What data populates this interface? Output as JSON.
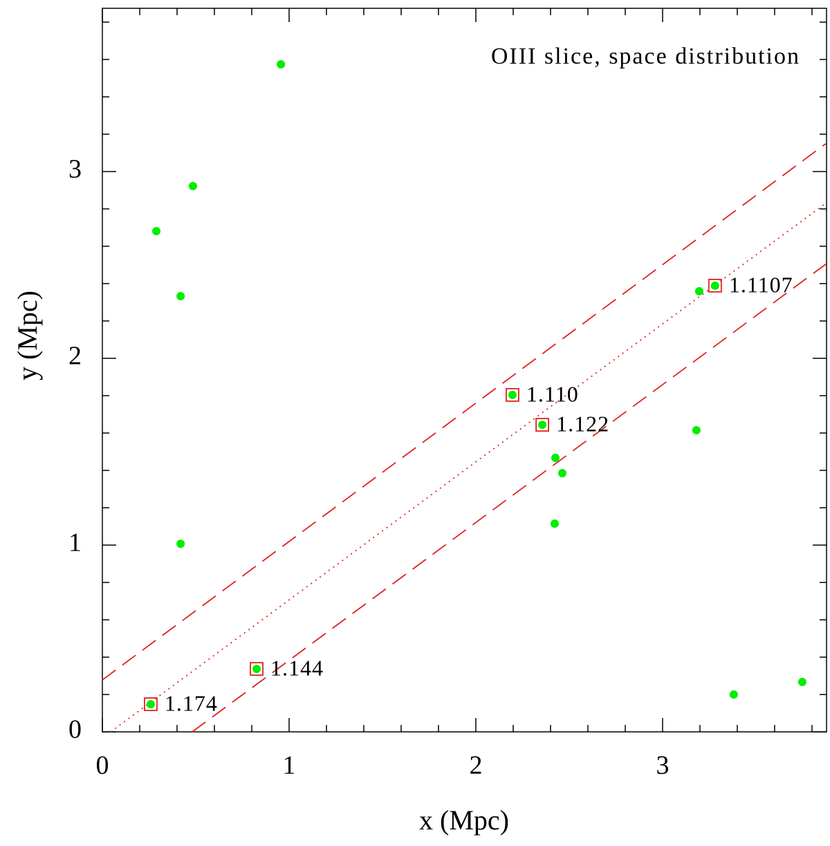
{
  "chart_data": {
    "type": "scatter",
    "title": "OIII slice, space distribution",
    "x_label": "x (Mpc)",
    "y_label": "y (Mpc)",
    "xlim": [
      0,
      3.878
    ],
    "ylim": [
      0,
      3.874
    ],
    "xticks": [
      0,
      1,
      2,
      3
    ],
    "yticks": [
      0,
      1,
      2,
      3
    ],
    "xminor": [
      0.2,
      0.4,
      0.6,
      0.8,
      1.2,
      1.4,
      1.6,
      1.8,
      2.2,
      2.4,
      2.6,
      2.8,
      3.2,
      3.4,
      3.6,
      3.8
    ],
    "yminor": [
      0.2,
      0.4,
      0.6,
      0.8,
      1.2,
      1.4,
      1.6,
      1.8,
      2.2,
      2.4,
      2.6,
      2.8,
      3.2,
      3.4,
      3.6,
      3.8
    ],
    "series": [
      {
        "color": "#00ee00",
        "x": [
          0.956,
          0.485,
          0.289,
          0.419,
          0.419,
          0.259,
          0.826,
          2.196,
          2.356,
          2.426,
          2.463,
          2.422,
          3.181,
          3.196,
          3.281,
          3.381,
          3.748
        ],
        "y": [
          3.574,
          2.922,
          2.681,
          2.333,
          1.007,
          0.148,
          0.337,
          1.804,
          1.644,
          1.467,
          1.385,
          1.115,
          1.615,
          2.359,
          2.389,
          0.2,
          0.267
        ]
      }
    ],
    "lines": [
      {
        "style": "dashed",
        "color": "#e02020",
        "x": [
          0,
          3.878
        ],
        "y": [
          0.278,
          3.152
        ]
      },
      {
        "style": "dotted",
        "color": "#e02020",
        "x": [
          0.044,
          3.878
        ],
        "y": [
          0,
          2.833
        ]
      },
      {
        "style": "dashed",
        "color": "#e02020",
        "x": [
          0.481,
          3.878
        ],
        "y": [
          0,
          2.507
        ]
      }
    ],
    "annotations": [
      {
        "text": "1.174",
        "x": 0.259,
        "y": 0.148
      },
      {
        "text": "1.144",
        "x": 0.826,
        "y": 0.337
      },
      {
        "text": "1.110",
        "x": 2.196,
        "y": 1.804
      },
      {
        "text": "1.122",
        "x": 2.356,
        "y": 1.644
      },
      {
        "text": "1.1107",
        "x": 3.281,
        "y": 2.389
      }
    ],
    "annotation_color": "#e02020"
  }
}
